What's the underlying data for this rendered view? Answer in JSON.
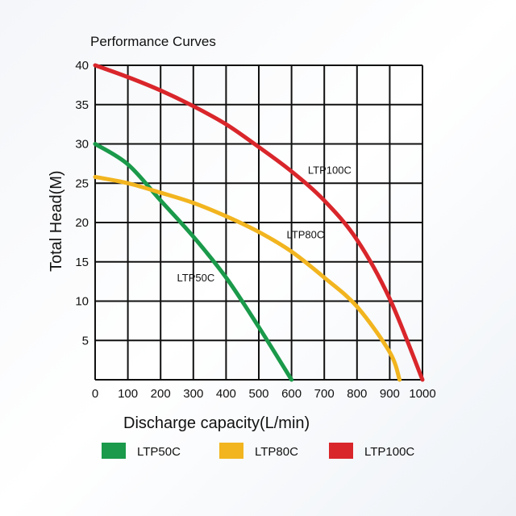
{
  "chart_data": {
    "type": "line",
    "title": "Performance Curves",
    "xlabel": "Discharge capacity(L/min)",
    "ylabel": "Total Head(M)",
    "xlim": [
      0,
      1000
    ],
    "ylim": [
      0,
      40
    ],
    "grid": true,
    "legend_placement": "bottom",
    "x_ticks": [
      "0",
      "100",
      "200",
      "300",
      "400",
      "500",
      "600",
      "700",
      "800",
      "900",
      "1000"
    ],
    "y_ticks": [
      "5",
      "10",
      "15",
      "20",
      "25",
      "30",
      "35",
      "40"
    ],
    "series": [
      {
        "name": "LTP50C",
        "color": "#1a9a4a",
        "x": [
          0,
          100,
          200,
          300,
          400,
          500,
          600
        ],
        "y": [
          30,
          27.4,
          22.8,
          18.2,
          13.0,
          6.7,
          0
        ]
      },
      {
        "name": "LTP80C",
        "color": "#f2b51f",
        "x": [
          0,
          100,
          200,
          300,
          400,
          500,
          600,
          700,
          800,
          900,
          930
        ],
        "y": [
          25.8,
          25.0,
          23.8,
          22.5,
          20.8,
          18.8,
          16.3,
          13.0,
          9.3,
          3.5,
          0
        ]
      },
      {
        "name": "LTP100C",
        "color": "#d9262b",
        "x": [
          0,
          100,
          200,
          300,
          400,
          500,
          600,
          700,
          800,
          900,
          1000
        ],
        "y": [
          40,
          38.5,
          36.8,
          34.8,
          32.5,
          29.6,
          26.5,
          22.8,
          17.8,
          10.3,
          0
        ]
      }
    ],
    "annotations": [
      {
        "text": "LTP50C",
        "x": 250,
        "y": 12.5
      },
      {
        "text": "LTP80C",
        "x": 585,
        "y": 18
      },
      {
        "text": "LTP100C",
        "x": 650,
        "y": 26.2
      }
    ]
  }
}
